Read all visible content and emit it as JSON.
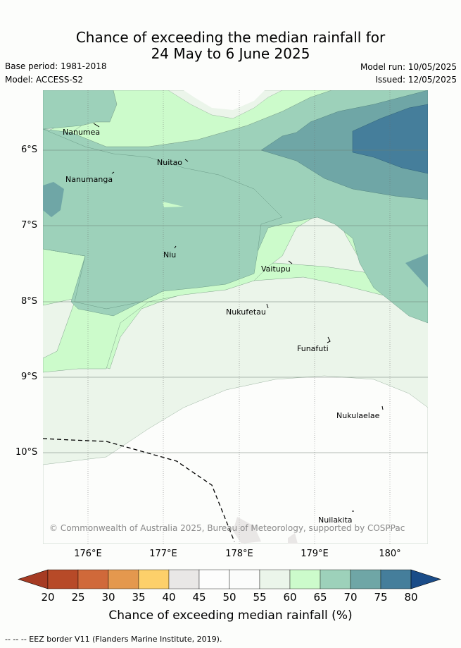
{
  "title": {
    "line1": "Chance of exceeding the median rainfall for",
    "line2": "24 May to 6 June 2025"
  },
  "meta": {
    "base_period": "Base period: 1981-2018",
    "model": "Model: ACCESS-S2",
    "model_run": "Model run: 10/05/2025",
    "issued": "Issued: 12/05/2025"
  },
  "map": {
    "lat_ticks": [
      "6°S",
      "7°S",
      "8°S",
      "9°S",
      "10°S"
    ],
    "lon_ticks": [
      "176°E",
      "177°E",
      "178°E",
      "179°E",
      "180°"
    ],
    "islands": [
      {
        "name": "Nanumea"
      },
      {
        "name": "Nuitao"
      },
      {
        "name": "Nanumanga"
      },
      {
        "name": "Niu"
      },
      {
        "name": "Vaitupu"
      },
      {
        "name": "Nukufetau"
      },
      {
        "name": "Funafuti"
      },
      {
        "name": "Nukulaelae"
      },
      {
        "name": "Nuilakita"
      }
    ],
    "copyright": "© Commonwealth of Australia 2025, Bureau of Meteorology, supported by COSPPac"
  },
  "colorbar": {
    "ticks": [
      "20",
      "25",
      "30",
      "35",
      "40",
      "45",
      "50",
      "55",
      "60",
      "65",
      "70",
      "75",
      "80"
    ],
    "colors": [
      "#a63b23",
      "#b74a28",
      "#d0693a",
      "#e4984e",
      "#fdd06a",
      "#e9e7e6",
      "#fdfdfd",
      "#fbfcfb",
      "#ebf5ea",
      "#ccfbcb",
      "#9dd1ba",
      "#6fa6a6",
      "#457e9b",
      "#1a4c88"
    ],
    "label": "Chance of exceeding median rainfall (%)"
  },
  "footnote": "-- -- -- EEZ border V11 (Flanders Marine Institute, 2019)."
}
